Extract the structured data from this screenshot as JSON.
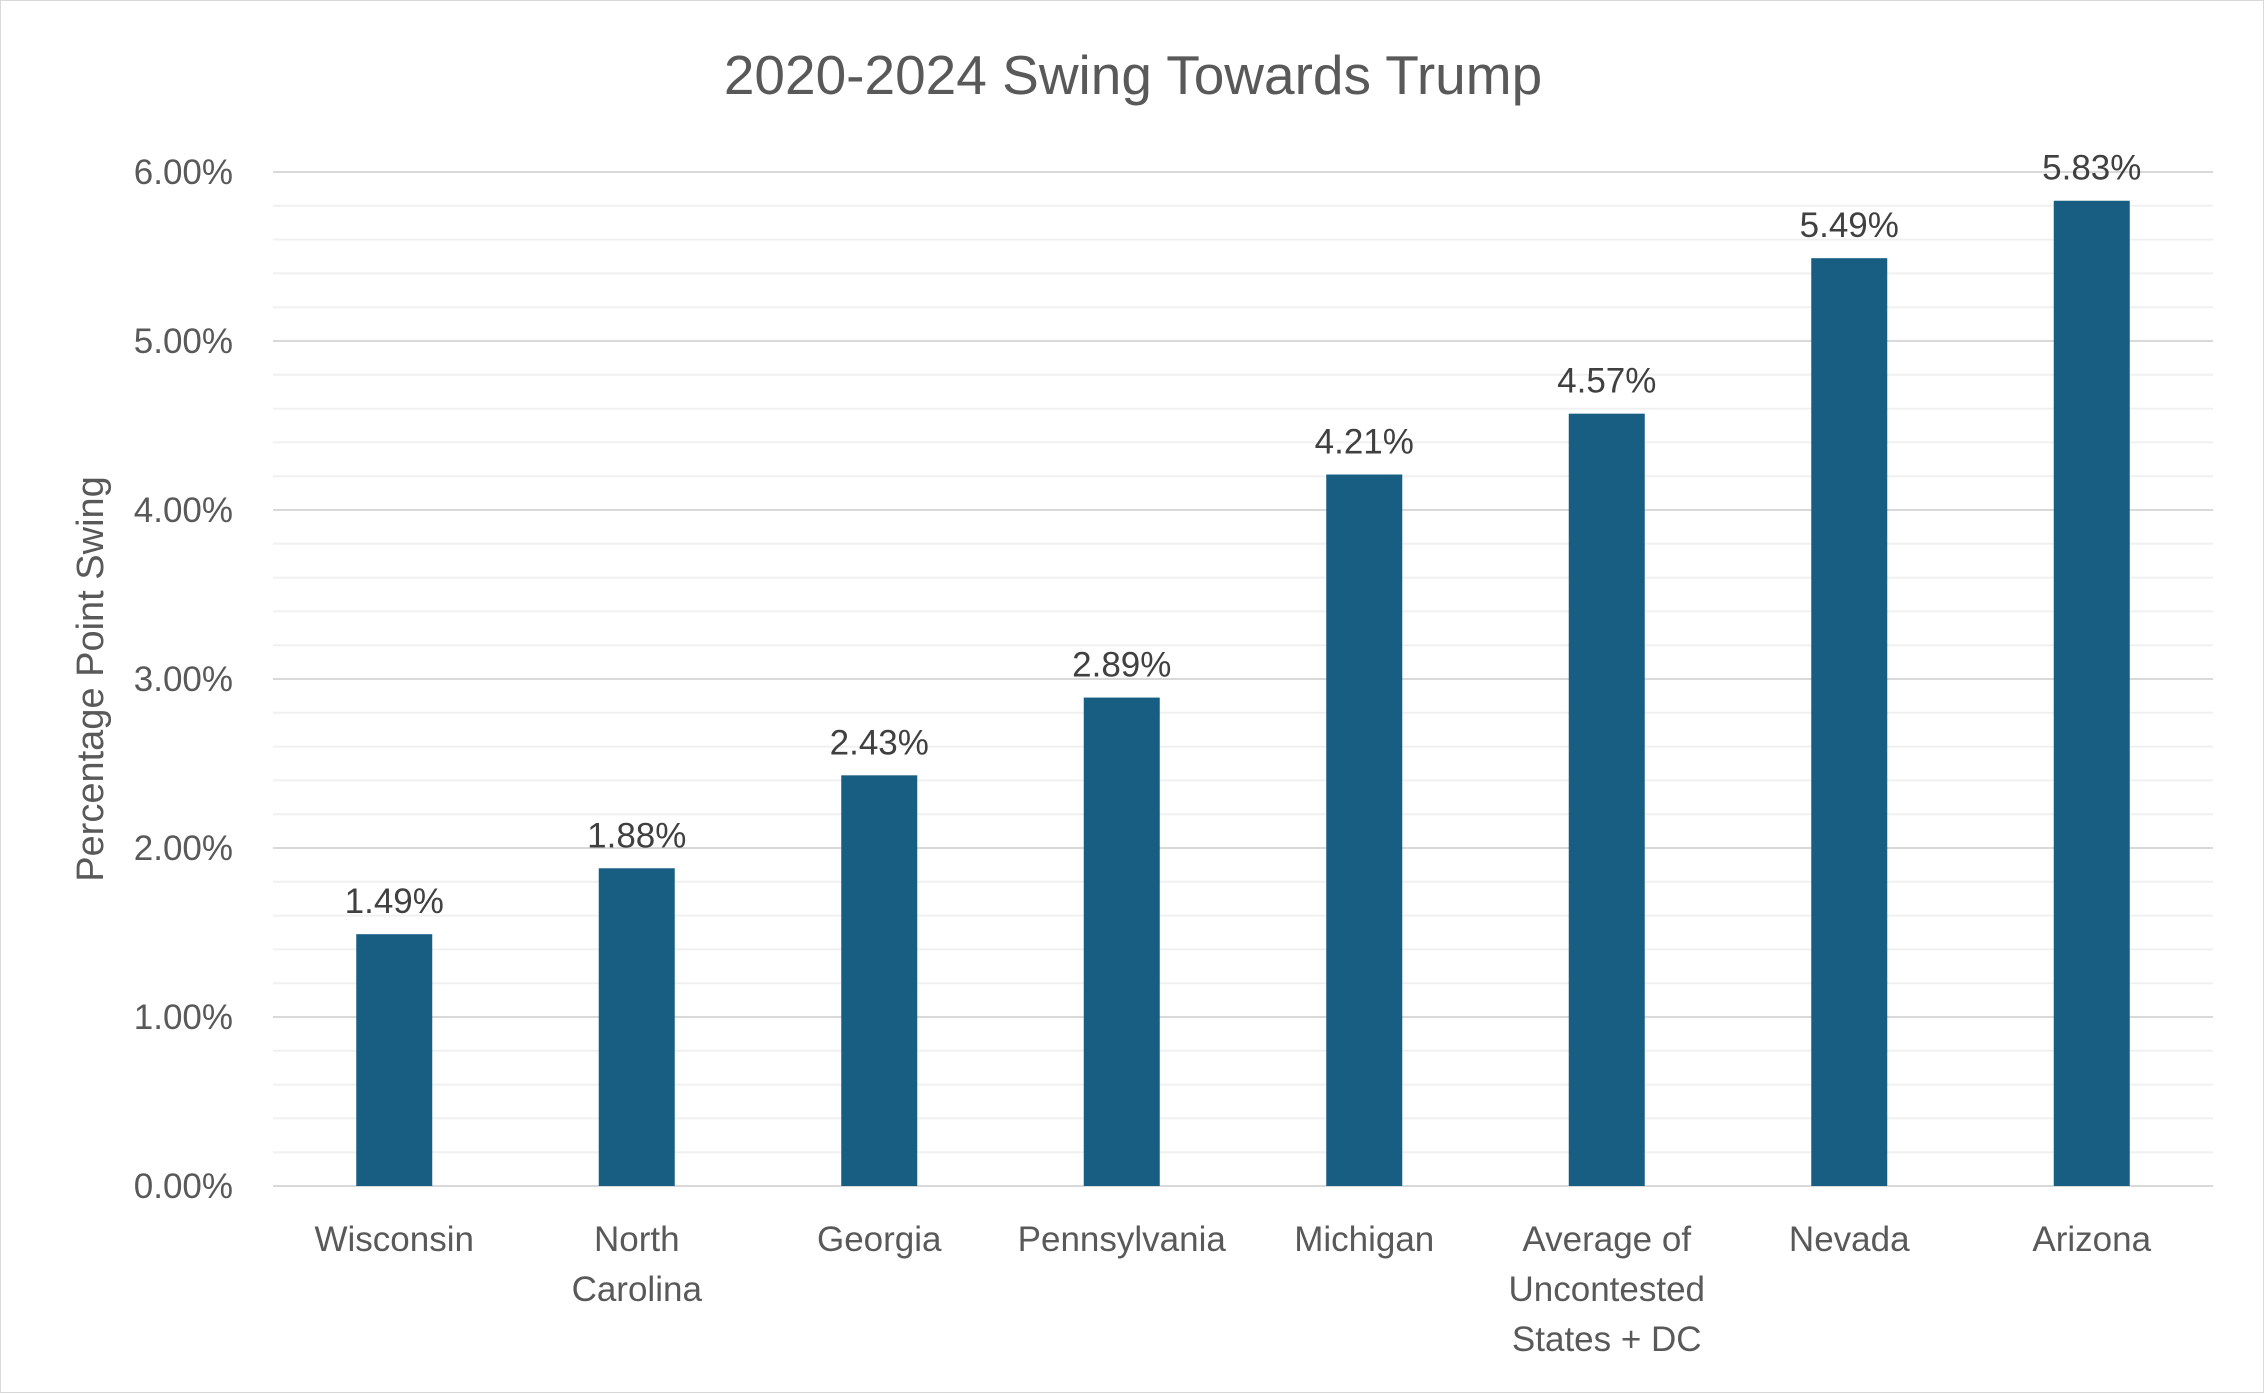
{
  "chart_data": {
    "type": "bar",
    "title": "2020-2024 Swing Towards Trump",
    "xlabel": "",
    "ylabel": "Percentage Point Swing",
    "categories": [
      [
        "Wisconsin"
      ],
      [
        "North",
        "Carolina"
      ],
      [
        "Georgia"
      ],
      [
        "Pennsylvania"
      ],
      [
        "Michigan"
      ],
      [
        "Average of",
        "Uncontested",
        "States + DC"
      ],
      [
        "Nevada"
      ],
      [
        "Arizona"
      ]
    ],
    "values": [
      1.49,
      1.88,
      2.43,
      2.89,
      4.21,
      4.57,
      5.49,
      5.83
    ],
    "data_labels": [
      "1.49%",
      "1.88%",
      "2.43%",
      "2.89%",
      "4.21%",
      "4.57%",
      "5.49%",
      "5.83%"
    ],
    "ylim": [
      0,
      6
    ],
    "yticks": [
      0,
      1,
      2,
      3,
      4,
      5,
      6
    ],
    "ytick_labels": [
      "0.00%",
      "1.00%",
      "2.00%",
      "3.00%",
      "4.00%",
      "5.00%",
      "6.00%"
    ],
    "minor_grid_step": 0.2,
    "grid": true,
    "legend": "none",
    "colors": {
      "bar": "#175E82",
      "major_grid": "#d9d9d9",
      "minor_grid": "#f0f0f0",
      "axis": "#d9d9d9"
    }
  }
}
